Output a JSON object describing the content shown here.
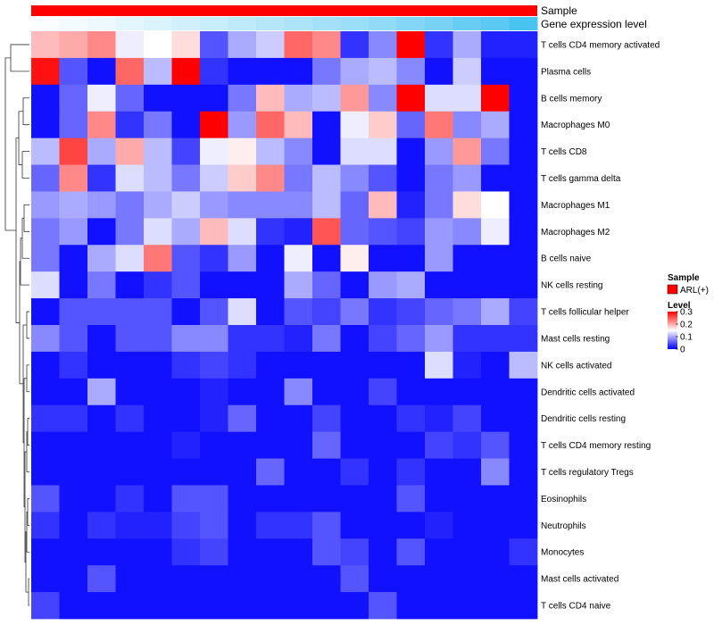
{
  "chart_data": {
    "type": "heatmap",
    "title": "",
    "annotation_tracks": [
      {
        "label": "Sample",
        "color": "#ff0000"
      },
      {
        "label": "Gene expression level",
        "gradient": [
          "#ffffff",
          "#49c3f0"
        ]
      }
    ],
    "legend": {
      "sample_title": "Sample",
      "sample_entry": "ARL(+)",
      "sample_color": "#ff0000",
      "level_title": "Level",
      "level_ticks": [
        "0.3",
        "0.2",
        "0.1",
        "0"
      ],
      "position": "right"
    },
    "scale": {
      "min": 0,
      "mid": 0.15,
      "max": 0.3,
      "low_color": "#0000ff",
      "mid_color": "#ffffff",
      "high_color": "#ff0000"
    },
    "rows": [
      "T cells CD4 memory activated",
      "Plasma cells",
      "B cells memory",
      "Macrophages M0",
      "T cells CD8",
      "T cells gamma delta",
      "Macrophages M1",
      "Macrophages M2",
      "B cells naive",
      "NK cells resting",
      "T cells follicular helper",
      "Mast cells resting",
      "NK cells activated",
      "Dendritic cells activated",
      "Dendritic cells resting",
      "T cells CD4 memory resting",
      "T cells regulatory  Tregs",
      "Eosinophils",
      "Neutrophils",
      "Monocytes",
      "Mast cells activated",
      "T cells CD4 naive"
    ],
    "columns_count": 18,
    "values": [
      [
        0.19,
        0.2,
        0.22,
        0.14,
        0.15,
        0.17,
        0.05,
        0.1,
        0.12,
        0.24,
        0.22,
        0.03,
        0.08,
        0.3,
        0.03,
        0.1,
        0.02,
        0.02
      ],
      [
        0.29,
        0.05,
        0.01,
        0.24,
        0.11,
        0.3,
        0.03,
        0.01,
        0.01,
        0.01,
        0.07,
        0.1,
        0.11,
        0.08,
        0.01,
        0.12,
        0.01,
        0.01
      ],
      [
        0.01,
        0.06,
        0.14,
        0.06,
        0.01,
        0.01,
        0.01,
        0.07,
        0.19,
        0.1,
        0.11,
        0.21,
        0.08,
        0.3,
        0.13,
        0.13,
        0.3,
        0.01
      ],
      [
        0.01,
        0.06,
        0.22,
        0.03,
        0.07,
        0.01,
        0.3,
        0.09,
        0.24,
        0.19,
        0.01,
        0.14,
        0.18,
        0.06,
        0.23,
        0.08,
        0.1,
        0.01
      ],
      [
        0.11,
        0.26,
        0.1,
        0.2,
        0.11,
        0.04,
        0.14,
        0.16,
        0.11,
        0.08,
        0.01,
        0.13,
        0.13,
        0.01,
        0.09,
        0.21,
        0.07,
        0.01
      ],
      [
        0.06,
        0.22,
        0.03,
        0.13,
        0.11,
        0.07,
        0.12,
        0.18,
        0.22,
        0.07,
        0.11,
        0.08,
        0.05,
        0.01,
        0.07,
        0.09,
        0.01,
        0.01
      ],
      [
        0.09,
        0.1,
        0.09,
        0.07,
        0.1,
        0.12,
        0.09,
        0.08,
        0.08,
        0.08,
        0.11,
        0.06,
        0.19,
        0.02,
        0.07,
        0.17,
        0.15,
        0.01
      ],
      [
        0.07,
        0.09,
        0.01,
        0.07,
        0.13,
        0.1,
        0.19,
        0.13,
        0.03,
        0.02,
        0.25,
        0.06,
        0.05,
        0.04,
        0.09,
        0.08,
        0.14,
        0.01
      ],
      [
        0.07,
        0.01,
        0.1,
        0.13,
        0.23,
        0.05,
        0.03,
        0.09,
        0.01,
        0.14,
        0.01,
        0.16,
        0.01,
        0.01,
        0.09,
        0.01,
        0.01,
        0.01
      ],
      [
        0.13,
        0.01,
        0.07,
        0.01,
        0.03,
        0.05,
        0.01,
        0.01,
        0.01,
        0.1,
        0.06,
        0.01,
        0.09,
        0.1,
        0.01,
        0.01,
        0.01,
        0.01
      ],
      [
        0.01,
        0.05,
        0.05,
        0.05,
        0.05,
        0.01,
        0.05,
        0.13,
        0.01,
        0.05,
        0.04,
        0.07,
        0.03,
        0.04,
        0.06,
        0.07,
        0.1,
        0.04
      ],
      [
        0.08,
        0.05,
        0.01,
        0.05,
        0.05,
        0.08,
        0.08,
        0.03,
        0.03,
        0.02,
        0.07,
        0.01,
        0.04,
        0.06,
        0.09,
        0.03,
        0.03,
        0.03
      ],
      [
        0.01,
        0.03,
        0.01,
        0.01,
        0.01,
        0.03,
        0.04,
        0.03,
        0.01,
        0.01,
        0.01,
        0.01,
        0.01,
        0.01,
        0.13,
        0.02,
        0.01,
        0.11
      ],
      [
        0.01,
        0.01,
        0.1,
        0.01,
        0.01,
        0.01,
        0.02,
        0.01,
        0.01,
        0.08,
        0.01,
        0.01,
        0.04,
        0.01,
        0.01,
        0.01,
        0.01,
        0.01
      ],
      [
        0.03,
        0.03,
        0.01,
        0.03,
        0.01,
        0.01,
        0.02,
        0.06,
        0.01,
        0.01,
        0.04,
        0.01,
        0.01,
        0.03,
        0.02,
        0.04,
        0.01,
        0.01
      ],
      [
        0.01,
        0.01,
        0.01,
        0.01,
        0.01,
        0.02,
        0.01,
        0.01,
        0.01,
        0.01,
        0.06,
        0.01,
        0.01,
        0.01,
        0.04,
        0.03,
        0.05,
        0.01
      ],
      [
        0.01,
        0.01,
        0.01,
        0.01,
        0.01,
        0.01,
        0.01,
        0.01,
        0.06,
        0.01,
        0.01,
        0.03,
        0.01,
        0.03,
        0.01,
        0.01,
        0.08,
        0.01
      ],
      [
        0.05,
        0.01,
        0.01,
        0.03,
        0.01,
        0.05,
        0.05,
        0.01,
        0.01,
        0.01,
        0.01,
        0.01,
        0.01,
        0.05,
        0.01,
        0.01,
        0.01,
        0.01
      ],
      [
        0.03,
        0.01,
        0.03,
        0.02,
        0.02,
        0.04,
        0.05,
        0.01,
        0.03,
        0.03,
        0.05,
        0.01,
        0.01,
        0.01,
        0.02,
        0.01,
        0.01,
        0.01
      ],
      [
        0.01,
        0.01,
        0.01,
        0.01,
        0.01,
        0.03,
        0.04,
        0.01,
        0.01,
        0.01,
        0.05,
        0.04,
        0.01,
        0.05,
        0.01,
        0.01,
        0.01,
        0.03
      ],
      [
        0.01,
        0.01,
        0.05,
        0.01,
        0.01,
        0.01,
        0.01,
        0.01,
        0.01,
        0.01,
        0.01,
        0.05,
        0.01,
        0.01,
        0.01,
        0.01,
        0.01,
        0.01
      ],
      [
        0.04,
        0.01,
        0.01,
        0.01,
        0.01,
        0.01,
        0.01,
        0.01,
        0.01,
        0.01,
        0.01,
        0.01,
        0.05,
        0.01,
        0.01,
        0.01,
        0.01,
        0.01
      ]
    ],
    "expression_track": [
      0.02,
      0.06,
      0.1,
      0.15,
      0.2,
      0.25,
      0.3,
      0.35,
      0.4,
      0.45,
      0.5,
      0.55,
      0.6,
      0.68,
      0.75,
      0.83,
      0.9,
      1.0
    ]
  }
}
